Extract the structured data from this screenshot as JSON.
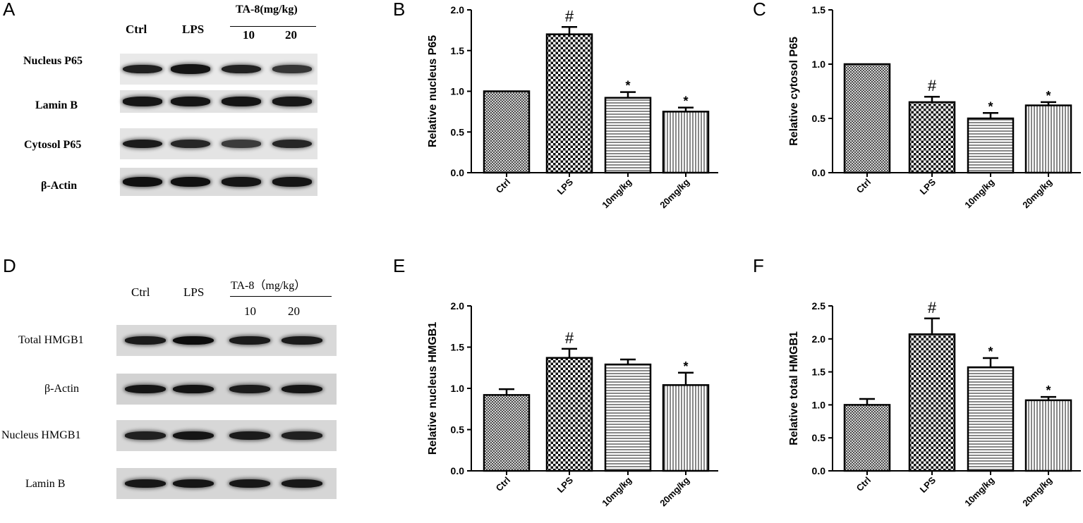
{
  "panels": {
    "A": {
      "letter": "A",
      "lanes": [
        "Ctrl",
        "LPS",
        "10",
        "20"
      ],
      "treatment_label": "TA-8(mg/kg)",
      "rows": [
        "Nucleus P65",
        "Lamin  B",
        "Cytosol P65",
        "β-Actin"
      ],
      "band_strength": [
        [
          0.8,
          0.9,
          0.78,
          0.6
        ],
        [
          0.9,
          0.9,
          0.9,
          0.88
        ],
        [
          0.85,
          0.75,
          0.55,
          0.75
        ],
        [
          0.95,
          0.95,
          0.9,
          0.9
        ]
      ]
    },
    "D": {
      "letter": "D",
      "lanes": [
        "Ctrl",
        "LPS",
        "10",
        "20"
      ],
      "treatment_label": "TA-8（mg/kg）",
      "rows": [
        "Total  HMGB1",
        "β-Actin",
        "Nucleus  HMGB1",
        "Lamin B"
      ],
      "band_strength": [
        [
          0.85,
          0.98,
          0.85,
          0.85
        ],
        [
          0.9,
          0.92,
          0.85,
          0.9
        ],
        [
          0.8,
          0.9,
          0.85,
          0.8
        ],
        [
          0.88,
          0.9,
          0.88,
          0.88
        ]
      ]
    }
  },
  "colors": {
    "ink": "#000000",
    "bar_edge": "#000000",
    "bar_fill_bg": "#ffffff"
  },
  "chart_data": [
    {
      "id": "B",
      "letter": "B",
      "type": "bar",
      "categories": [
        "Ctrl",
        "LPS",
        "10mg/kg",
        "20mg/kg"
      ],
      "values": [
        1.0,
        1.7,
        0.92,
        0.75
      ],
      "errors": [
        0.0,
        0.09,
        0.07,
        0.05
      ],
      "annotations": [
        "",
        "#",
        "*",
        "*"
      ],
      "patterns": [
        "mesh",
        "checker",
        "hlines",
        "vlines"
      ],
      "ylabel": "Relative nucleus P65",
      "ylim": [
        0,
        2.0
      ],
      "yticks": [
        "0.0",
        "0.5",
        "1.0",
        "1.5",
        "2.0"
      ]
    },
    {
      "id": "C",
      "letter": "C",
      "type": "bar",
      "categories": [
        "Ctrl",
        "LPS",
        "10mg/kg",
        "20mg/kg"
      ],
      "values": [
        1.0,
        0.65,
        0.5,
        0.62
      ],
      "errors": [
        0.0,
        0.05,
        0.05,
        0.03
      ],
      "annotations": [
        "",
        "#",
        "*",
        "*"
      ],
      "patterns": [
        "mesh",
        "checker",
        "hlines",
        "vlines"
      ],
      "ylabel": "Relative cytosol P65",
      "ylim": [
        0,
        1.5
      ],
      "yticks": [
        "0.0",
        "0.5",
        "1.0",
        "1.5"
      ]
    },
    {
      "id": "E",
      "letter": "E",
      "type": "bar",
      "categories": [
        "Ctrl",
        "LPS",
        "10mg/kg",
        "20mg/kg"
      ],
      "values": [
        0.92,
        1.37,
        1.29,
        1.04
      ],
      "errors": [
        0.07,
        0.11,
        0.06,
        0.15
      ],
      "annotations": [
        "",
        "#",
        "",
        "*"
      ],
      "patterns": [
        "mesh",
        "checker",
        "hlines",
        "vlines"
      ],
      "ylabel": "Relative nucleus HMGB1",
      "ylim": [
        0,
        2.0
      ],
      "yticks": [
        "0.0",
        "0.5",
        "1.0",
        "1.5",
        "2.0"
      ]
    },
    {
      "id": "F",
      "letter": "F",
      "type": "bar",
      "categories": [
        "Ctrl",
        "LPS",
        "10mg/kg",
        "20mg/kg"
      ],
      "values": [
        1.0,
        2.07,
        1.57,
        1.07
      ],
      "errors": [
        0.09,
        0.24,
        0.14,
        0.05
      ],
      "annotations": [
        "",
        "#",
        "*",
        "*"
      ],
      "patterns": [
        "mesh",
        "checker",
        "hlines",
        "vlines"
      ],
      "ylabel": "Relative total HMGB1",
      "ylim": [
        0,
        2.5
      ],
      "yticks": [
        "0.0",
        "0.5",
        "1.0",
        "1.5",
        "2.0",
        "2.5"
      ]
    }
  ]
}
